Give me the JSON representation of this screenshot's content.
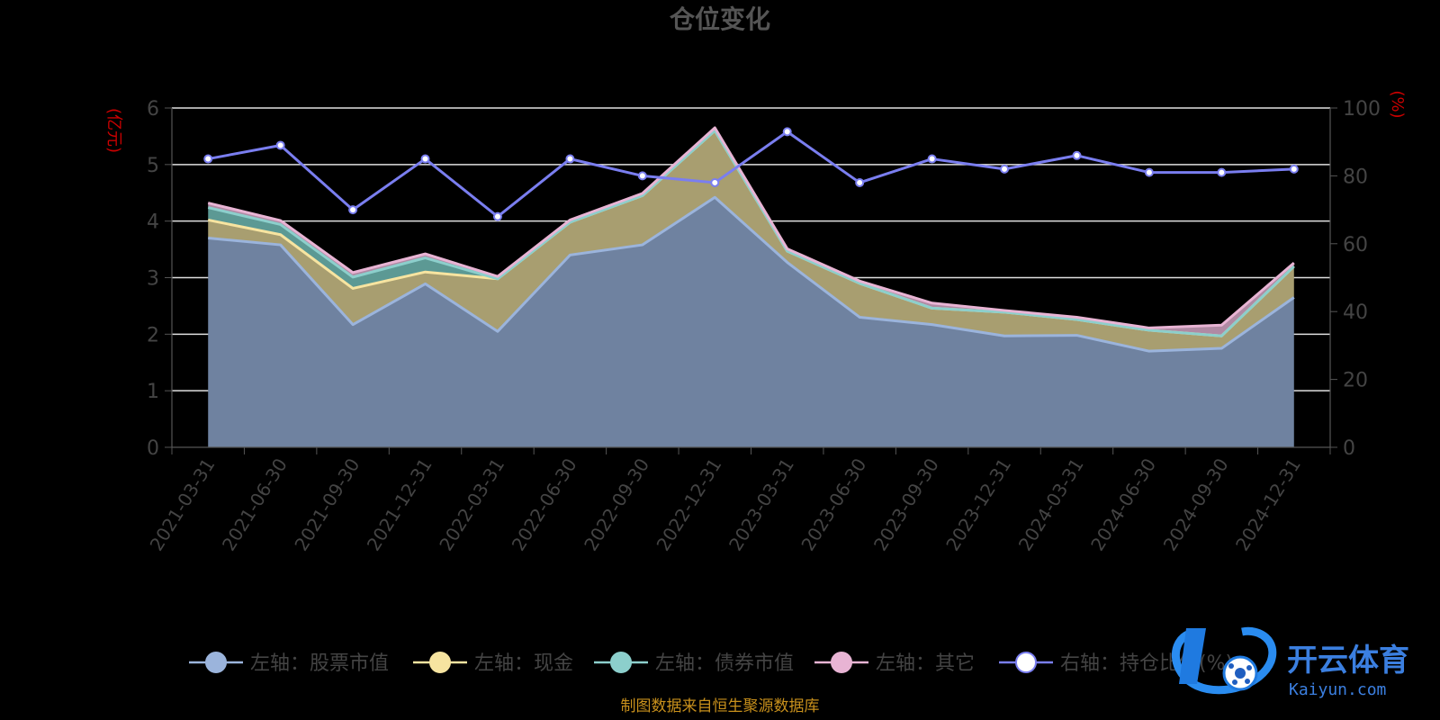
{
  "chart_data": {
    "type": "area",
    "title": "仓位变化",
    "y_left_unit": "(亿元)",
    "y_right_unit": "(%)",
    "y_left_ticks": [
      "0",
      "1",
      "2",
      "3",
      "4",
      "5",
      "6"
    ],
    "y_right_ticks": [
      "0",
      "20",
      "40",
      "60",
      "80",
      "100"
    ],
    "ylim_left": [
      0,
      6
    ],
    "ylim_right": [
      0,
      100
    ],
    "categories": [
      "2021-03-31",
      "2021-06-30",
      "2021-09-30",
      "2021-12-31",
      "2022-03-31",
      "2022-06-30",
      "2022-09-30",
      "2022-12-31",
      "2023-03-31",
      "2023-06-30",
      "2023-09-30",
      "2023-12-31",
      "2024-03-31",
      "2024-06-30",
      "2024-09-30",
      "2024-12-31"
    ],
    "series": [
      {
        "name": "左轴：股票市值",
        "axis": "left",
        "stack": true,
        "color": "#9bb4dc",
        "values": [
          3.7,
          3.58,
          2.17,
          2.89,
          2.05,
          3.4,
          3.58,
          4.42,
          3.27,
          2.3,
          2.17,
          1.97,
          1.98,
          1.7,
          1.75,
          2.65
        ]
      },
      {
        "name": "左轴：现金",
        "axis": "left",
        "stack": true,
        "color": "#f7e4a0",
        "values": [
          0.32,
          0.18,
          0.64,
          0.21,
          0.93,
          0.58,
          0.87,
          1.18,
          0.2,
          0.6,
          0.29,
          0.42,
          0.28,
          0.37,
          0.22,
          0.55
        ]
      },
      {
        "name": "左轴：债券市值",
        "axis": "left",
        "stack": true,
        "color": "#8ccfcc",
        "values": [
          0.22,
          0.18,
          0.2,
          0.25,
          0.0,
          0.0,
          0.0,
          0.0,
          0.0,
          0.0,
          0.0,
          0.0,
          0.0,
          0.0,
          0.0,
          0.0
        ]
      },
      {
        "name": "左轴：其它",
        "axis": "left",
        "stack": true,
        "color": "#e8b4d4",
        "values": [
          0.08,
          0.07,
          0.08,
          0.07,
          0.04,
          0.04,
          0.04,
          0.05,
          0.04,
          0.04,
          0.09,
          0.03,
          0.04,
          0.04,
          0.19,
          0.06
        ]
      },
      {
        "name": "右轴：持仓比例(%)",
        "axis": "right",
        "stack": false,
        "color": "#7a7ef0",
        "values": [
          85,
          89,
          70,
          85,
          68,
          85,
          80,
          78,
          93,
          78,
          85,
          82,
          86,
          81,
          81,
          82
        ]
      }
    ],
    "legend_position": "bottom",
    "grid": true
  },
  "footer": "制图数据来自恒生聚源数据库",
  "logo": {
    "cn": "开云体育",
    "en": "Kaiyun.com"
  }
}
